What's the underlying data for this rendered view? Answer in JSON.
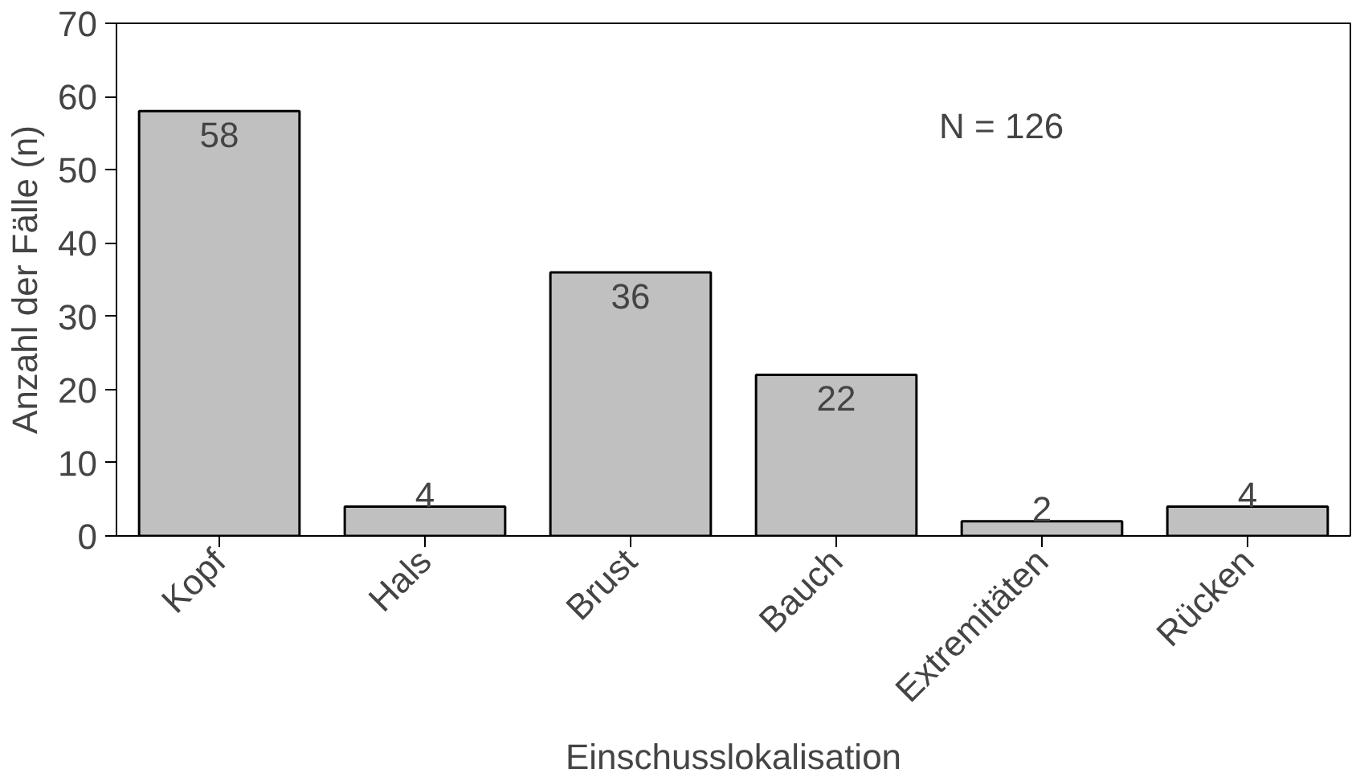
{
  "chart_data": {
    "type": "bar",
    "xlabel": "Einschusslokalisation",
    "ylabel": "Anzahl der Fälle (n)",
    "categories": [
      "Kopf",
      "Hals",
      "Brust",
      "Bauch",
      "Extremitäten",
      "Rücken"
    ],
    "values": [
      58,
      4,
      36,
      22,
      2,
      4
    ],
    "color": "#c0c0c0",
    "ylim": [
      0,
      70
    ],
    "yticks": [
      0,
      10,
      20,
      30,
      40,
      50,
      60,
      70
    ],
    "grid": false,
    "data_labels": true,
    "annotations": [
      "N = 126"
    ]
  }
}
